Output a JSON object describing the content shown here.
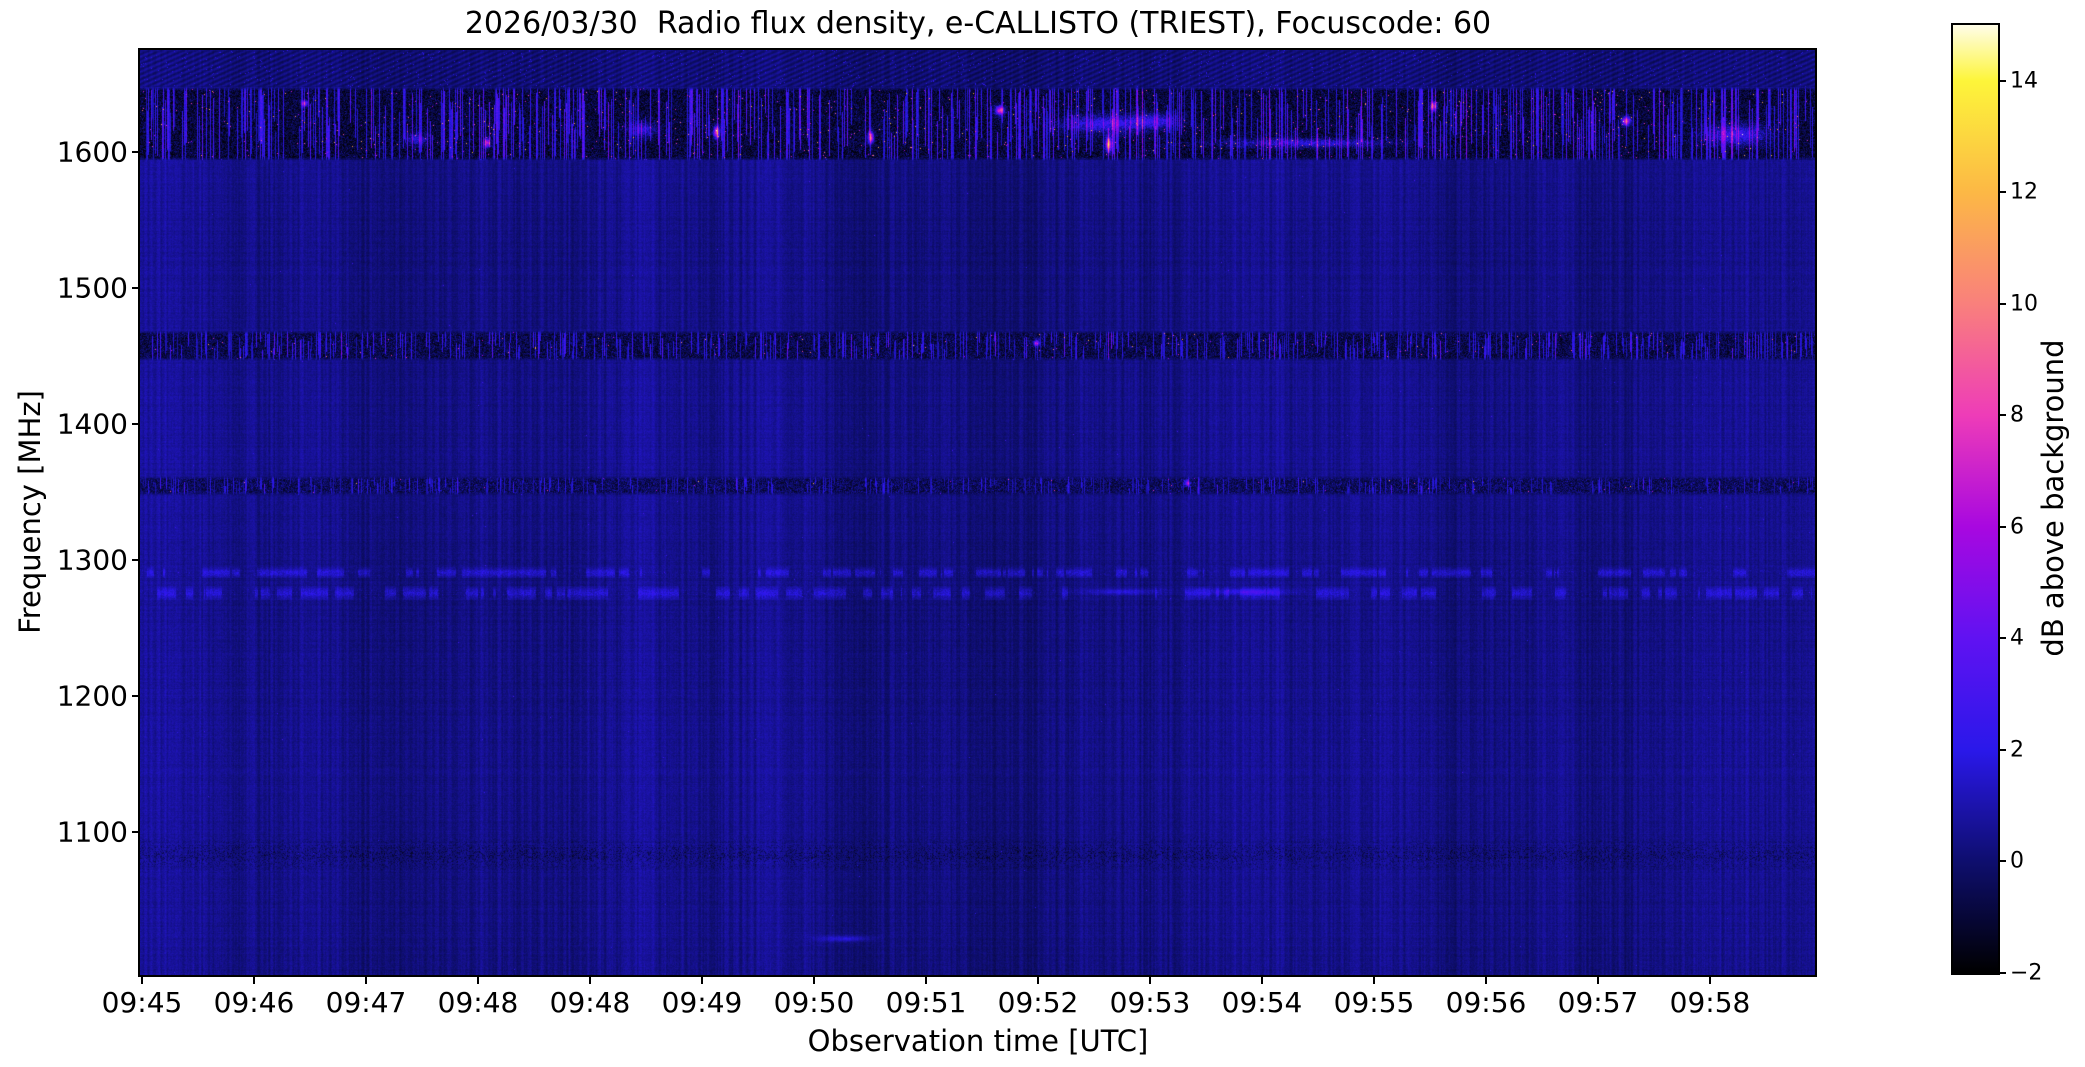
{
  "figure": {
    "background_color": "#ffffff",
    "instrument": "e-CALLISTO",
    "station": "TRIEST",
    "date": "2026/03/30",
    "focuscode": "60"
  },
  "chart_data": {
    "type": "heatmap",
    "title": "2026/03/30  Radio flux density, e-CALLISTO (TRIEST), Focuscode: 60",
    "xlabel": "Observation time [UTC]",
    "ylabel": "Frequency [MHz]",
    "x_ticks": [
      "09:45",
      "09:46",
      "09:47",
      "09:48",
      "09:48",
      "09:49",
      "09:50",
      "09:51",
      "09:52",
      "09:53",
      "09:54",
      "09:55",
      "09:56",
      "09:57",
      "09:58"
    ],
    "y_ticks": [
      1600,
      1500,
      1400,
      1300,
      1200,
      1100
    ],
    "x_range": [
      "09:45",
      "09:59"
    ],
    "y_range_mhz": [
      995,
      1675
    ],
    "grid": false,
    "legend": null,
    "background_level_db": {
      "mean": 0.4,
      "spread": 0.7
    },
    "colorbar": {
      "label": "dB above background",
      "ticks": [
        14,
        12,
        10,
        8,
        6,
        4,
        2,
        0,
        -2
      ],
      "vmin": -2,
      "vmax": 15,
      "colormap_stops": [
        {
          "v": -2,
          "c": "#000000"
        },
        {
          "v": 0,
          "c": "#0e0e6e"
        },
        {
          "v": 2,
          "c": "#2a18ea"
        },
        {
          "v": 4,
          "c": "#6012f2"
        },
        {
          "v": 6,
          "c": "#a808e0"
        },
        {
          "v": 8,
          "c": "#ee3cb8"
        },
        {
          "v": 10,
          "c": "#f9807c"
        },
        {
          "v": 12,
          "c": "#fcb845"
        },
        {
          "v": 14,
          "c": "#fdf53a"
        },
        {
          "v": 15,
          "c": "#fffde8"
        }
      ]
    },
    "features": {
      "bands": [
        {
          "name": "top-edge-moire",
          "f_lo": 1648,
          "f_hi": 1675,
          "style": "moire"
        },
        {
          "name": "rfi-band-1620",
          "f_lo": 1594,
          "f_hi": 1648,
          "style": "heavy"
        },
        {
          "name": "rfi-band-1458",
          "f_lo": 1447,
          "f_hi": 1469,
          "style": "medium"
        },
        {
          "name": "rfi-band-1355",
          "f_lo": 1348,
          "f_hi": 1362,
          "style": "thin"
        },
        {
          "name": "faint-line-1291",
          "f_lo": 1287,
          "f_hi": 1295,
          "style": "faint-bright"
        },
        {
          "name": "faint-line-1276",
          "f_lo": 1271,
          "f_hi": 1281,
          "style": "faint-bright"
        },
        {
          "name": "noise-rows-1080",
          "f_lo": 1070,
          "f_hi": 1097,
          "style": "faint-dark"
        }
      ],
      "hotspots": [
        {
          "t_frac": 0.575,
          "f_mhz": 1621,
          "sx": 26,
          "sy": 6,
          "peak_db": 3.4
        },
        {
          "t_frac": 0.605,
          "f_mhz": 1623,
          "sx": 16,
          "sy": 5,
          "peak_db": 3.1
        },
        {
          "t_frac": 0.953,
          "f_mhz": 1613,
          "sx": 20,
          "sy": 7,
          "peak_db": 3.6
        },
        {
          "t_frac": 0.695,
          "f_mhz": 1607,
          "sx": 55,
          "sy": 3,
          "peak_db": 2.8
        },
        {
          "t_frac": 0.3,
          "f_mhz": 1617,
          "sx": 9,
          "sy": 5,
          "peak_db": 2.9
        },
        {
          "t_frac": 0.165,
          "f_mhz": 1610,
          "sx": 7,
          "sy": 4,
          "peak_db": 2.7
        },
        {
          "t_frac": 0.513,
          "f_mhz": 1631,
          "sx": 3,
          "sy": 3,
          "peak_db": 8.6
        },
        {
          "t_frac": 0.436,
          "f_mhz": 1611,
          "sx": 2,
          "sy": 4,
          "peak_db": 9.2
        },
        {
          "t_frac": 0.772,
          "f_mhz": 1634,
          "sx": 2,
          "sy": 3,
          "peak_db": 8.0
        },
        {
          "t_frac": 0.578,
          "f_mhz": 1606,
          "sx": 2,
          "sy": 5,
          "peak_db": 10.8
        },
        {
          "t_frac": 0.887,
          "f_mhz": 1623,
          "sx": 3,
          "sy": 3,
          "peak_db": 8.4
        },
        {
          "t_frac": 0.207,
          "f_mhz": 1607,
          "sx": 2,
          "sy": 3,
          "peak_db": 7.6
        },
        {
          "t_frac": 0.344,
          "f_mhz": 1615,
          "sx": 2,
          "sy": 4,
          "peak_db": 9.6
        },
        {
          "t_frac": 0.098,
          "f_mhz": 1636,
          "sx": 2,
          "sy": 2,
          "peak_db": 7.2
        },
        {
          "t_frac": 0.535,
          "f_mhz": 1460,
          "sx": 2,
          "sy": 2,
          "peak_db": 6.6
        },
        {
          "t_frac": 0.625,
          "f_mhz": 1357,
          "sx": 2,
          "sy": 2,
          "peak_db": 5.6
        },
        {
          "t_frac": 0.42,
          "f_mhz": 1022,
          "sx": 18,
          "sy": 2,
          "peak_db": 1.7
        },
        {
          "t_frac": 0.66,
          "f_mhz": 1277,
          "sx": 30,
          "sy": 2,
          "peak_db": 1.5
        },
        {
          "t_frac": 0.585,
          "f_mhz": 1277,
          "sx": 25,
          "sy": 2,
          "peak_db": 1.4
        }
      ]
    }
  }
}
